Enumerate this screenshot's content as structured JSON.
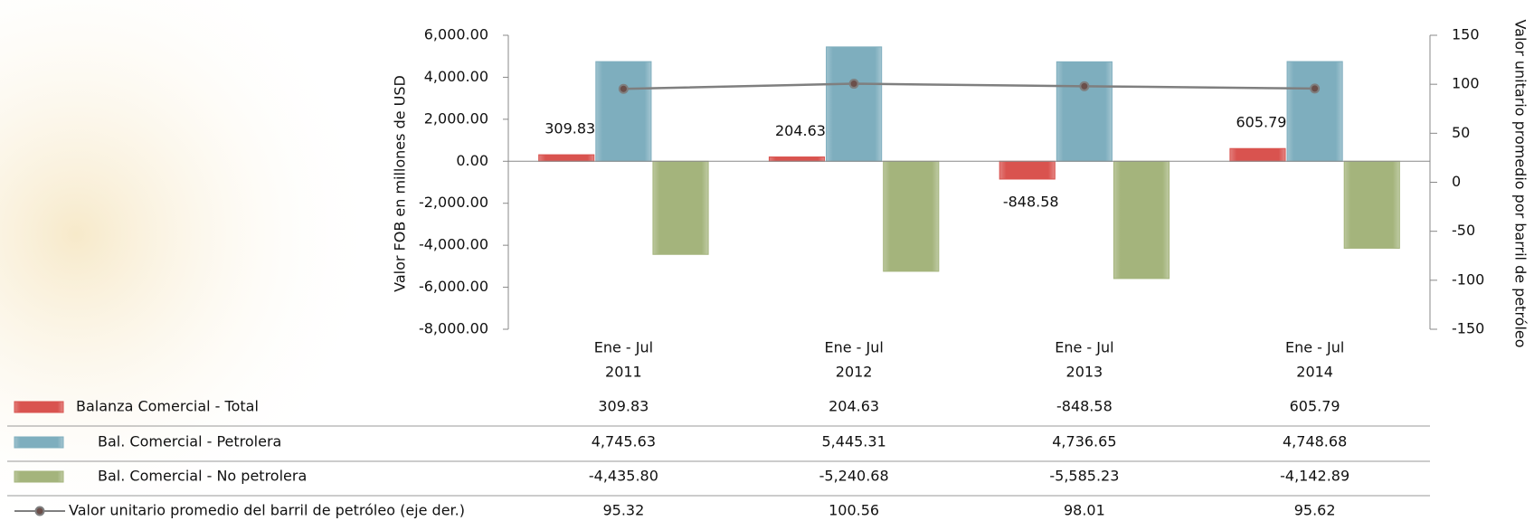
{
  "chart_data": {
    "type": "bar",
    "y_label": "Valor FOB en millones de USD",
    "y2_label": "Valor unitario promedio por barril de petróleo",
    "categories": [
      [
        "Ene - Jul",
        "2011"
      ],
      [
        "Ene - Jul",
        "2012"
      ],
      [
        "Ene - Jul",
        "2013"
      ],
      [
        "Ene - Jul",
        "2014"
      ]
    ],
    "series": [
      {
        "name": "Balanza Comercial - Total",
        "color": "#d9534f",
        "values": [
          309.83,
          204.63,
          -848.58,
          605.79
        ]
      },
      {
        "name": "Bal. Comercial - Petrolera",
        "color": "#7eaebe",
        "values": [
          4745.63,
          5445.31,
          4736.65,
          4748.68
        ],
        "value_labels": [
          "4,745.63",
          "5,445.31",
          "4,736.65",
          "4,748.68"
        ]
      },
      {
        "name": "Bal. Comercial - No petrolera",
        "color": "#a4b47c",
        "values": [
          -4435.8,
          -5240.68,
          -5585.23,
          -4142.89
        ],
        "value_labels": [
          "-4,435.80",
          "-5,240.68",
          "-5,585.23",
          "-4,142.89"
        ]
      },
      {
        "name": "Valor unitario promedio del barril de petróleo (eje der.)",
        "color": "#7f7f7f",
        "type": "line",
        "axis": "y2",
        "values": [
          95.32,
          100.56,
          98.01,
          95.62
        ]
      }
    ],
    "ylim": [
      -8000,
      6000
    ],
    "yticks": [
      {
        "value": -8000,
        "label": "-8,000.00"
      },
      {
        "value": -6000,
        "label": "-6,000.00"
      },
      {
        "value": -4000,
        "label": "-4,000.00"
      },
      {
        "value": -2000,
        "label": "-2,000.00"
      },
      {
        "value": 0,
        "label": "0.00"
      },
      {
        "value": 2000,
        "label": "2,000.00"
      },
      {
        "value": 4000,
        "label": "4,000.00"
      },
      {
        "value": 6000,
        "label": "6,000.00"
      }
    ],
    "y2lim": [
      -150,
      150
    ],
    "y2ticks": [
      -150,
      -100,
      -50,
      0,
      50,
      100,
      150
    ],
    "data_labels_series": 0
  }
}
